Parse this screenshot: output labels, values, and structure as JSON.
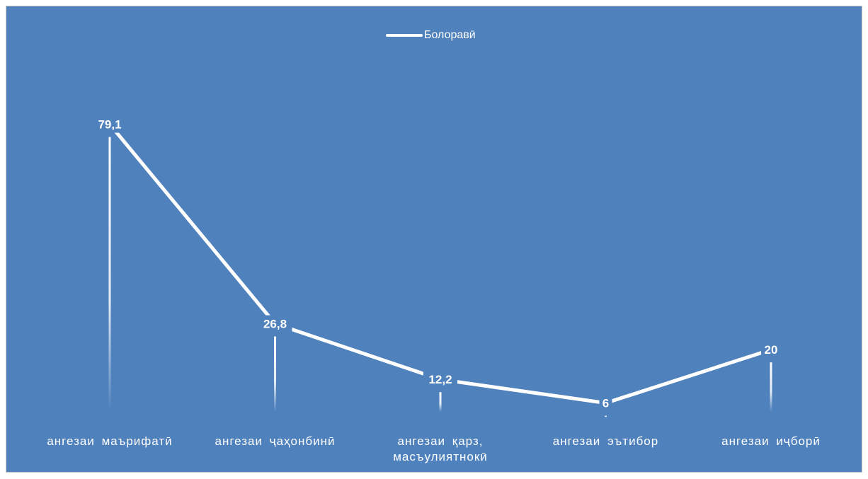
{
  "chart_data": {
    "type": "line",
    "categories": [
      "ангезаи  маърифатӣ",
      "ангезаи ҷаҳонбинӣ",
      "ангезаи   қарз,\nмасъулиятнокӣ",
      "ангезаи    эътибор",
      "ангезаи иҷборӣ"
    ],
    "series": [
      {
        "name": "Болоравӣ",
        "values": [
          79.1,
          26.8,
          12.2,
          6,
          20
        ]
      }
    ],
    "data_labels": [
      "79,1",
      "26,8",
      "12,2",
      "6",
      "20"
    ],
    "title": "",
    "xlabel": "",
    "ylabel": "",
    "ylim": [
      0,
      100
    ],
    "grid": false,
    "legend_position": "top-center",
    "drop_lines": true,
    "colors": {
      "background": "#4f81bd",
      "line": "#ffffff",
      "text": "#ffffff",
      "border": "#c9c9c9"
    }
  }
}
